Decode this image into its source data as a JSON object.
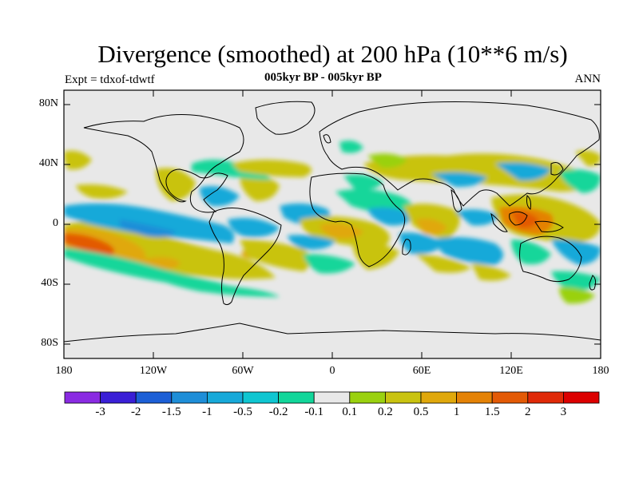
{
  "title": "Divergence (smoothed) at 200 hPa (10**6 m/s)",
  "subtitle_left": "Expt = tdxof-tdwtf",
  "subtitle_center": "005kyr BP - 005kyr BP",
  "subtitle_right": "ANN",
  "lat_labels": [
    "80N",
    "40N",
    "0",
    "40S",
    "80S"
  ],
  "lon_labels": [
    "180",
    "120W",
    "60W",
    "0",
    "60E",
    "120E",
    "180"
  ],
  "colorbar": {
    "labels": [
      "-3",
      "-2",
      "-1.5",
      "-1",
      "-0.5",
      "-0.2",
      "-0.1",
      "0.1",
      "0.2",
      "0.5",
      "1",
      "1.5",
      "2",
      "3"
    ],
    "colors": [
      "#8a2be2",
      "#3a1fd6",
      "#1c5fd6",
      "#1e8ed8",
      "#17a9d9",
      "#0fc6d1",
      "#12d69a",
      "#e8e8e8",
      "#9ad10f",
      "#c9c310",
      "#e0a80c",
      "#e48206",
      "#e35a06",
      "#e02a08",
      "#dc0000"
    ]
  },
  "colors": {
    "background_field": "#e8e8e8",
    "coastline": "#000000"
  }
}
